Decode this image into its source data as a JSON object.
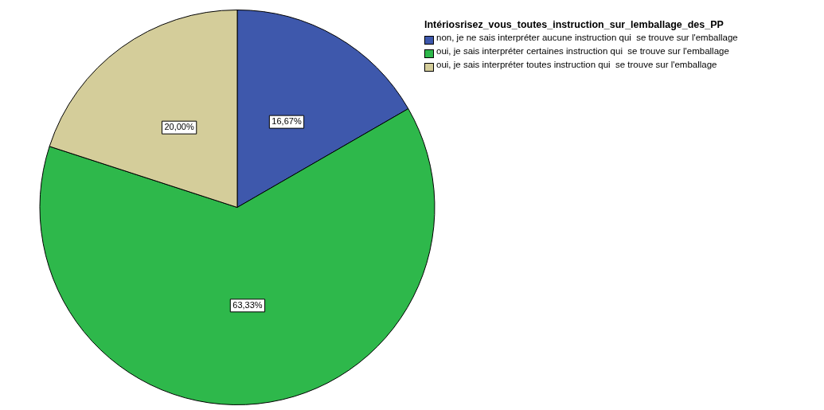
{
  "chart_data": {
    "type": "pie",
    "legend_title": "Intériosrisez_vous_toutes_instruction_sur_lemballage_des_PP",
    "categories": [
      "non, je ne sais interpréter aucune instruction qui  se trouve sur l'emballage",
      "oui, je sais interpréter certaines instruction qui  se trouve sur l'emballage",
      "oui, je sais interpréter toutes instruction qui  se trouve sur l'emballage"
    ],
    "values": [
      16.67,
      63.33,
      20.0
    ],
    "colors": [
      "#3e58ac",
      "#2eb84b",
      "#d4cd9a"
    ],
    "value_labels": [
      "16,67%",
      "63,33%",
      "20,00%"
    ],
    "legend": "top right"
  }
}
